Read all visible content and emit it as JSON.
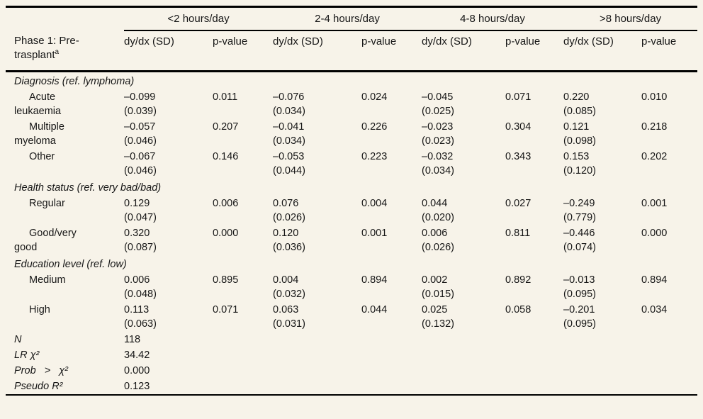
{
  "page": {
    "background_color": "#f7f3e9",
    "rule_color": "#000000"
  },
  "table": {
    "group_headers": [
      "<2 hours/day",
      "2-4 hours/day",
      "4-8 hours/day",
      ">8 hours/day"
    ],
    "row_header": {
      "label": "Phase 1: Pre-\ntrasplant",
      "superscript": "a"
    },
    "col_subheaders": [
      "dy/dx (SD)",
      "p-value",
      "dy/dx (SD)",
      "p-value",
      "dy/dx (SD)",
      "p-value",
      "dy/dx (SD)",
      "p-value"
    ],
    "rows": [
      {
        "type": "section",
        "label": "Diagnosis (ref. lymphoma)"
      },
      {
        "type": "data",
        "label": "Acute\nleukaemia",
        "cells": [
          {
            "est": "–0.099",
            "sd": "(0.039)",
            "p": "0.011"
          },
          {
            "est": "–0.076",
            "sd": "(0.034)",
            "p": "0.024"
          },
          {
            "est": "–0.045",
            "sd": "(0.025)",
            "p": "0.071"
          },
          {
            "est": "0.220",
            "sd": "(0.085)",
            "p": "0.010"
          }
        ]
      },
      {
        "type": "data",
        "label": "Multiple\nmyeloma",
        "cells": [
          {
            "est": "–0.057",
            "sd": "(0.046)",
            "p": "0.207"
          },
          {
            "est": "–0.041",
            "sd": "(0.034)",
            "p": "0.226"
          },
          {
            "est": "–0.023",
            "sd": "(0.023)",
            "p": "0.304"
          },
          {
            "est": "0.121",
            "sd": "(0.098)",
            "p": "0.218"
          }
        ]
      },
      {
        "type": "data",
        "label": "Other",
        "cells": [
          {
            "est": "–0.067",
            "sd": "(0.046)",
            "p": "0.146"
          },
          {
            "est": "–0.053",
            "sd": "(0.044)",
            "p": "0.223"
          },
          {
            "est": "–0.032",
            "sd": "(0.034)",
            "p": "0.343"
          },
          {
            "est": "0.153",
            "sd": "(0.120)",
            "p": "0.202"
          }
        ]
      },
      {
        "type": "section",
        "label": "Health status (ref. very bad/bad)"
      },
      {
        "type": "data",
        "label": "Regular",
        "cells": [
          {
            "est": "0.129",
            "sd": "(0.047)",
            "p": "0.006"
          },
          {
            "est": "0.076",
            "sd": "(0.026)",
            "p": "0.004"
          },
          {
            "est": "0.044",
            "sd": "(0.020)",
            "p": "0.027"
          },
          {
            "est": "–0.249",
            "sd": "(0.779)",
            "p": "0.001"
          }
        ]
      },
      {
        "type": "data",
        "label": "Good/very\ngood",
        "cells": [
          {
            "est": "0.320",
            "sd": "(0.087)",
            "p": "0.000"
          },
          {
            "est": "0.120",
            "sd": "(0.036)",
            "p": "0.001"
          },
          {
            "est": "0.006",
            "sd": "(0.026)",
            "p": "0.811"
          },
          {
            "est": "–0.446",
            "sd": "(0.074)",
            "p": "0.000"
          }
        ]
      },
      {
        "type": "section",
        "label": "Education level (ref. low)"
      },
      {
        "type": "data",
        "label": "Medium",
        "cells": [
          {
            "est": "0.006",
            "sd": "(0.048)",
            "p": "0.895"
          },
          {
            "est": "0.004",
            "sd": "(0.032)",
            "p": "0.894"
          },
          {
            "est": "0.002",
            "sd": "(0.015)",
            "p": "0.892"
          },
          {
            "est": "–0.013",
            "sd": "(0.095)",
            "p": "0.894"
          }
        ]
      },
      {
        "type": "data",
        "label": "High",
        "cells": [
          {
            "est": "0.113",
            "sd": "(0.063)",
            "p": "0.071"
          },
          {
            "est": "0.063",
            "sd": "(0.031)",
            "p": "0.044"
          },
          {
            "est": "0.025",
            "sd": "(0.132)",
            "p": "0.058"
          },
          {
            "est": "–0.201",
            "sd": "(0.095)",
            "p": "0.034"
          }
        ]
      },
      {
        "type": "stat",
        "label": "N",
        "value": "118"
      },
      {
        "type": "stat",
        "label": "LR χ²",
        "value": "34.42"
      },
      {
        "type": "stat",
        "label": "Prob   >   χ²",
        "value": "0.000"
      },
      {
        "type": "stat",
        "label": "Pseudo R²",
        "value": "0.123"
      }
    ]
  }
}
